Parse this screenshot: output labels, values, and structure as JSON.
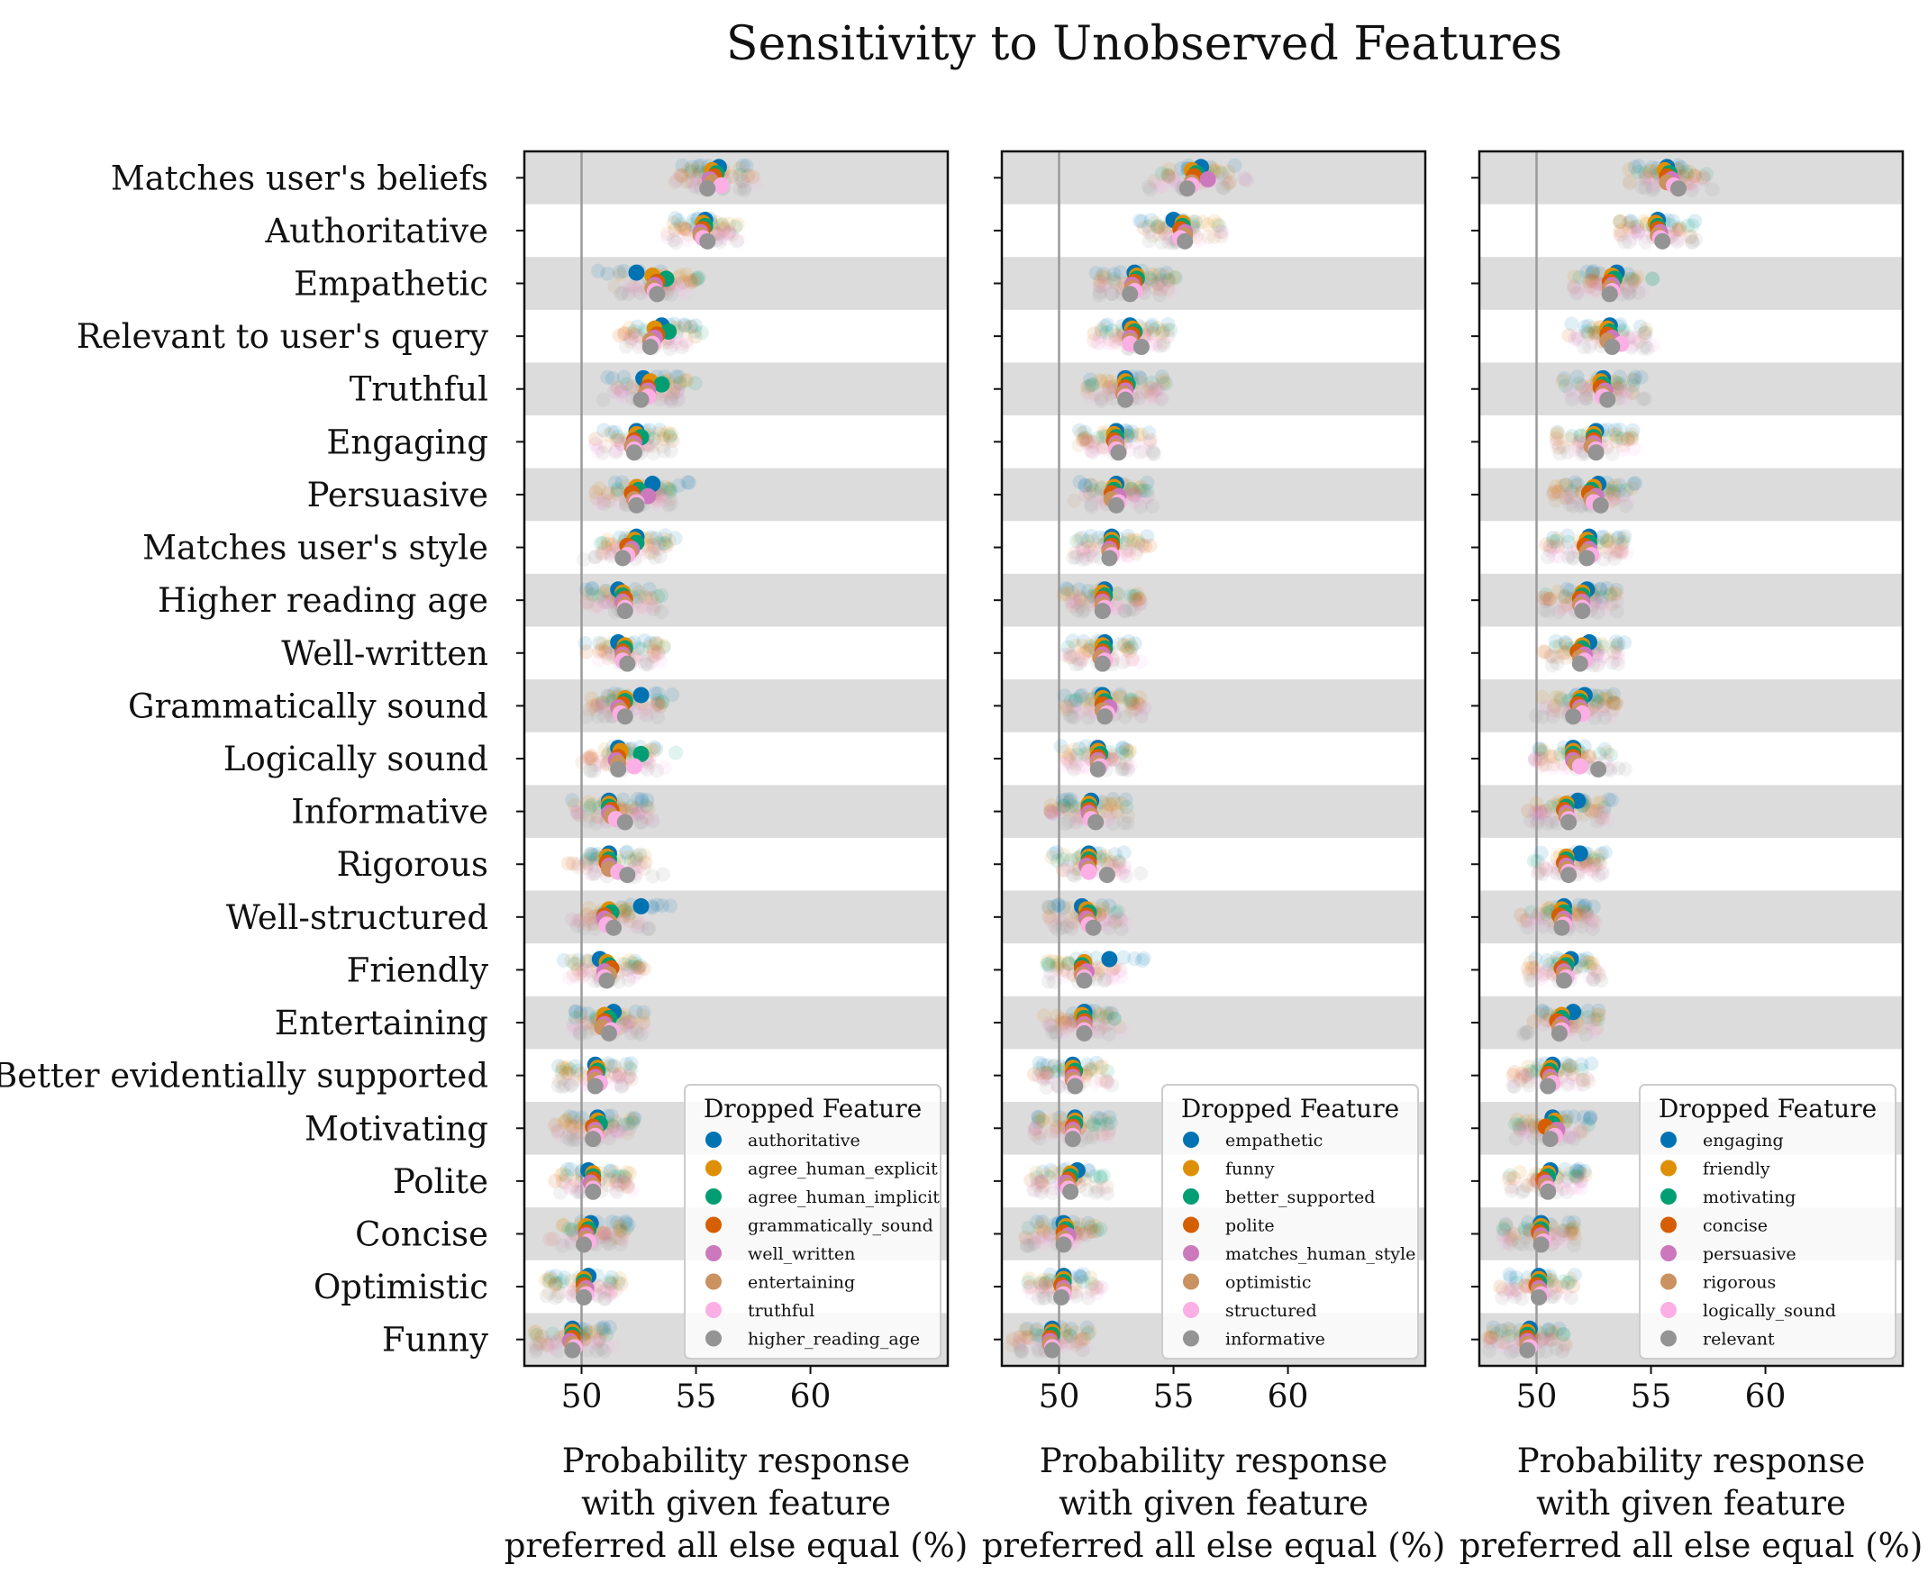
{
  "chart_data": {
    "type": "scatter",
    "title": "Sensitivity to Unobserved Features",
    "xlabel_lines": [
      "Probability response",
      "with given feature",
      "preferred all else equal (%)"
    ],
    "ylabel": "",
    "xlim": [
      47.5,
      66.0
    ],
    "xticks": [
      50,
      55,
      60
    ],
    "reference_line_x": 50,
    "grid": false,
    "categories": [
      "Matches user's beliefs",
      "Authoritative",
      "Empathetic",
      "Relevant to user's query",
      "Truthful",
      "Engaging",
      "Persuasive",
      "Matches user's style",
      "Higher reading age",
      "Well-written",
      "Grammatically sound",
      "Logically sound",
      "Informative",
      "Rigorous",
      "Well-structured",
      "Friendly",
      "Entertaining",
      "Better evidentially supported",
      "Motivating",
      "Polite",
      "Concise",
      "Optimistic",
      "Funny"
    ],
    "base_values": [
      55.8,
      55.3,
      53.2,
      53.1,
      52.8,
      52.3,
      52.3,
      52.0,
      51.8,
      51.8,
      51.7,
      51.5,
      51.2,
      51.1,
      51.0,
      51.0,
      50.9,
      50.6,
      50.6,
      50.5,
      50.2,
      50.1,
      49.6
    ],
    "legend_title": "Dropped Feature",
    "legend_placement": "bottom-right",
    "series_colors": [
      "#0173b2",
      "#de8f05",
      "#029e73",
      "#d55e00",
      "#cc78bc",
      "#ca9161",
      "#fbafe4",
      "#949494"
    ],
    "panels": [
      {
        "legend": [
          "authoritative",
          "agree_human_explicit",
          "agree_human_implicit",
          "grammatically_sound",
          "well_written",
          "entertaining",
          "truthful",
          "higher_reading_age"
        ],
        "series": [
          {
            "name": "authoritative",
            "values": [
              56.0,
              55.4,
              52.4,
              53.5,
              52.7,
              52.4,
              53.1,
              52.4,
              51.6,
              51.6,
              52.6,
              51.6,
              51.2,
              51.2,
              52.6,
              50.8,
              51.4,
              50.6,
              50.7,
              50.3,
              50.4,
              50.3,
              49.6
            ]
          },
          {
            "name": "agree_human_explicit",
            "values": [
              55.7,
              55.3,
              53.1,
              53.2,
              53.0,
              52.4,
              52.4,
              52.3,
              51.8,
              51.9,
              51.9,
              51.7,
              51.2,
              51.1,
              51.2,
              51.1,
              51.0,
              50.7,
              50.7,
              50.5,
              50.2,
              50.1,
              49.6
            ]
          },
          {
            "name": "agree_human_implicit",
            "values": [
              55.9,
              55.4,
              53.7,
              53.8,
              53.5,
              52.6,
              52.5,
              52.4,
              51.8,
              51.9,
              51.9,
              52.6,
              51.2,
              51.2,
              51.3,
              51.2,
              51.2,
              50.7,
              50.8,
              50.5,
              50.3,
              50.1,
              49.6
            ]
          },
          {
            "name": "grammatically_sound",
            "values": [
              55.8,
              55.3,
              53.3,
              53.3,
              52.9,
              52.3,
              52.2,
              52.0,
              51.9,
              51.8,
              51.8,
              51.6,
              51.3,
              51.1,
              51.0,
              51.3,
              51.0,
              50.6,
              50.5,
              50.5,
              50.2,
              50.1,
              49.6
            ]
          },
          {
            "name": "well_written",
            "values": [
              55.6,
              55.2,
              53.2,
              53.2,
              52.9,
              52.3,
              52.9,
              52.2,
              51.8,
              51.8,
              51.6,
              51.5,
              51.2,
              51.2,
              51.0,
              51.0,
              51.0,
              50.6,
              50.6,
              50.4,
              50.2,
              50.2,
              49.5
            ]
          },
          {
            "name": "entertaining",
            "values": [
              55.7,
              55.2,
              53.1,
              53.0,
              52.8,
              52.2,
              52.3,
              52.1,
              51.9,
              51.8,
              51.7,
              51.6,
              51.3,
              51.2,
              51.2,
              51.2,
              50.9,
              50.6,
              50.6,
              50.5,
              50.2,
              50.1,
              49.6
            ]
          },
          {
            "name": "truthful",
            "values": [
              56.1,
              55.3,
              53.2,
              53.1,
              52.9,
              52.3,
              52.4,
              52.0,
              51.9,
              51.8,
              51.7,
              52.3,
              51.5,
              51.6,
              51.1,
              51.0,
              51.3,
              50.8,
              50.6,
              50.5,
              50.3,
              50.2,
              49.7
            ]
          },
          {
            "name": "higher_reading_age",
            "values": [
              55.5,
              55.5,
              53.3,
              53.0,
              52.6,
              52.3,
              52.4,
              51.8,
              51.9,
              52.0,
              51.9,
              51.6,
              51.9,
              52.0,
              51.4,
              51.1,
              51.2,
              50.6,
              50.5,
              50.5,
              50.1,
              50.1,
              49.6
            ]
          }
        ]
      },
      {
        "legend": [
          "empathetic",
          "funny",
          "better_supported",
          "polite",
          "matches_human_style",
          "optimistic",
          "structured",
          "informative"
        ],
        "series": [
          {
            "name": "empathetic",
            "values": [
              56.2,
              55.0,
              53.3,
              53.1,
              52.9,
              52.5,
              52.5,
              52.3,
              52.0,
              52.0,
              51.9,
              51.7,
              51.4,
              51.3,
              51.0,
              52.2,
              51.1,
              50.6,
              50.7,
              50.8,
              50.2,
              50.2,
              49.7
            ]
          },
          {
            "name": "funny",
            "values": [
              55.8,
              55.4,
              53.4,
              53.2,
              52.9,
              52.4,
              52.4,
              52.3,
              51.9,
              51.9,
              51.9,
              51.7,
              51.3,
              51.3,
              51.2,
              51.1,
              51.0,
              50.6,
              50.7,
              50.5,
              50.3,
              50.2,
              49.7
            ]
          },
          {
            "name": "better_supported",
            "values": [
              56.0,
              55.4,
              53.4,
              53.3,
              53.0,
              52.5,
              52.4,
              52.3,
              52.0,
              52.0,
              52.0,
              51.8,
              51.3,
              51.3,
              51.3,
              51.0,
              51.1,
              50.7,
              50.7,
              50.5,
              50.3,
              50.2,
              49.7
            ]
          },
          {
            "name": "polite",
            "values": [
              55.9,
              55.3,
              53.3,
              53.2,
              52.9,
              52.4,
              52.3,
              52.3,
              51.9,
              51.9,
              51.9,
              51.7,
              51.3,
              51.3,
              51.2,
              51.0,
              51.1,
              50.6,
              50.6,
              50.4,
              50.2,
              50.1,
              49.6
            ]
          },
          {
            "name": "matches_human_style",
            "values": [
              56.5,
              55.5,
              53.2,
              53.1,
              52.9,
              52.5,
              52.6,
              52.2,
              51.9,
              51.9,
              52.2,
              51.7,
              51.3,
              51.2,
              51.2,
              51.2,
              51.1,
              50.6,
              50.6,
              50.3,
              50.4,
              50.2,
              49.6
            ]
          },
          {
            "name": "optimistic",
            "values": [
              55.8,
              55.5,
              53.2,
              53.1,
              52.8,
              52.5,
              52.3,
              52.2,
              51.9,
              51.8,
              51.9,
              51.7,
              51.4,
              51.3,
              51.3,
              51.0,
              51.1,
              50.6,
              50.6,
              50.4,
              50.2,
              50.2,
              49.6
            ]
          },
          {
            "name": "structured",
            "values": [
              55.8,
              55.3,
              53.3,
              53.1,
              52.9,
              52.5,
              52.6,
              52.3,
              52.0,
              52.0,
              52.1,
              51.8,
              51.4,
              51.3,
              51.3,
              51.1,
              51.1,
              50.7,
              50.6,
              50.4,
              50.3,
              50.2,
              49.7
            ]
          },
          {
            "name": "informative",
            "values": [
              55.6,
              55.5,
              53.1,
              53.6,
              52.9,
              52.6,
              52.5,
              52.2,
              51.9,
              51.9,
              52.0,
              51.7,
              51.6,
              52.1,
              51.5,
              51.1,
              51.1,
              50.7,
              50.6,
              50.5,
              50.2,
              50.1,
              49.7
            ]
          }
        ]
      },
      {
        "legend": [
          "engaging",
          "friendly",
          "motivating",
          "concise",
          "persuasive",
          "rigorous",
          "logically_sound",
          "relevant"
        ],
        "series": [
          {
            "name": "engaging",
            "values": [
              55.7,
              55.3,
              53.5,
              53.2,
              52.9,
              52.6,
              52.7,
              52.3,
              52.2,
              52.3,
              52.1,
              51.6,
              51.8,
              51.9,
              51.2,
              51.5,
              51.6,
              50.7,
              50.7,
              50.6,
              50.2,
              50.1,
              49.7
            ]
          },
          {
            "name": "friendly",
            "values": [
              55.6,
              55.2,
              53.3,
              53.1,
              52.8,
              52.5,
              52.5,
              52.2,
              52.0,
              52.0,
              51.9,
              51.6,
              51.3,
              51.3,
              51.1,
              51.3,
              51.1,
              50.6,
              50.8,
              50.5,
              50.2,
              50.1,
              49.6
            ]
          },
          {
            "name": "motivating",
            "values": [
              55.8,
              55.3,
              53.4,
              53.2,
              52.9,
              52.5,
              52.4,
              52.3,
              52.0,
              52.0,
              51.9,
              51.6,
              51.3,
              51.3,
              51.2,
              51.3,
              51.1,
              50.6,
              50.7,
              50.5,
              50.2,
              50.1,
              49.6
            ]
          },
          {
            "name": "concise",
            "values": [
              55.7,
              55.3,
              53.2,
              53.1,
              52.8,
              52.5,
              52.3,
              52.1,
              51.9,
              51.8,
              51.8,
              51.6,
              51.2,
              51.2,
              51.0,
              51.1,
              50.9,
              50.5,
              50.4,
              50.3,
              50.1,
              50.0,
              49.6
            ]
          },
          {
            "name": "persuasive",
            "values": [
              55.9,
              55.4,
              53.3,
              53.3,
              53.0,
              52.5,
              52.6,
              52.3,
              52.0,
              52.1,
              51.9,
              51.6,
              51.3,
              51.3,
              51.2,
              51.2,
              51.1,
              50.6,
              50.9,
              50.4,
              50.2,
              50.1,
              49.6
            ]
          },
          {
            "name": "rigorous",
            "values": [
              55.7,
              55.3,
              53.2,
              53.1,
              52.9,
              52.4,
              52.4,
              52.2,
              51.9,
              51.9,
              51.9,
              51.7,
              51.3,
              51.3,
              51.1,
              51.2,
              51.0,
              50.6,
              50.7,
              50.4,
              50.2,
              50.1,
              49.6
            ]
          },
          {
            "name": "logically_sound",
            "values": [
              56.0,
              55.4,
              53.3,
              53.7,
              52.9,
              52.6,
              52.5,
              52.4,
              52.0,
              52.1,
              52.0,
              51.9,
              51.4,
              51.4,
              51.2,
              51.3,
              51.1,
              50.7,
              50.8,
              50.5,
              50.3,
              50.2,
              49.7
            ]
          },
          {
            "name": "relevant",
            "values": [
              56.2,
              55.5,
              53.2,
              53.3,
              53.1,
              52.6,
              52.8,
              52.2,
              52.0,
              51.9,
              51.6,
              52.7,
              51.4,
              51.4,
              51.1,
              51.2,
              51.0,
              50.5,
              50.6,
              50.5,
              50.2,
              50.1,
              49.6
            ]
          }
        ]
      }
    ]
  }
}
